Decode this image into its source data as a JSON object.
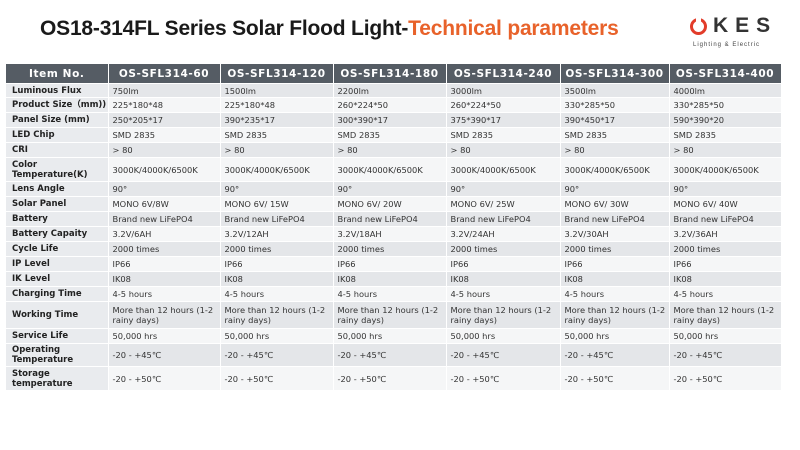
{
  "title": {
    "part1": "OS18-314FL Series Solar Flood Light-",
    "part2": "Technical parameters"
  },
  "logo": {
    "name": "KES",
    "tagline": "Lighting & Electric",
    "accent": "#e23c2a"
  },
  "colors": {
    "header_bg": "#555c64",
    "title_accent": "#e8622a"
  },
  "table": {
    "columns": [
      "Item No.",
      "OS-SFL314-60",
      "OS-SFL314-120",
      "OS-SFL314-180",
      "OS-SFL314-240",
      "OS-SFL314-300",
      "OS-SFL314-400"
    ],
    "rows": [
      {
        "label": "Luminous Flux",
        "cells": [
          "750lm",
          "1500lm",
          "2200lm",
          "3000lm",
          "3500lm",
          "4000lm"
        ]
      },
      {
        "label": "Product Size（mm))",
        "cells": [
          "225*180*48",
          "225*180*48",
          "260*224*50",
          "260*224*50",
          "330*285*50",
          "330*285*50"
        ]
      },
      {
        "label": "Panel Size (mm)",
        "cells": [
          "250*205*17",
          "390*235*17",
          "300*390*17",
          "375*390*17",
          "390*450*17",
          "590*390*20"
        ]
      },
      {
        "label": "LED Chip",
        "cells": [
          "SMD 2835",
          "SMD 2835",
          "SMD 2835",
          "SMD 2835",
          "SMD 2835",
          "SMD 2835"
        ]
      },
      {
        "label": "CRI",
        "cells": [
          "> 80",
          "> 80",
          "> 80",
          "> 80",
          "> 80",
          "> 80"
        ]
      },
      {
        "label": "Color Temperature(K)",
        "cells": [
          "3000K/4000K/6500K",
          "3000K/4000K/6500K",
          "3000K/4000K/6500K",
          "3000K/4000K/6500K",
          "3000K/4000K/6500K",
          "3000K/4000K/6500K"
        ]
      },
      {
        "label": "Lens Angle",
        "cells": [
          "90°",
          "90°",
          "90°",
          "90°",
          "90°",
          "90°"
        ]
      },
      {
        "label": "Solar Panel",
        "cells": [
          "MONO 6V/8W",
          "MONO 6V/ 15W",
          "MONO 6V/ 20W",
          "MONO 6V/ 25W",
          "MONO 6V/ 30W",
          "MONO 6V/ 40W"
        ]
      },
      {
        "label": "Battery",
        "cells": [
          "Brand new LiFePO4",
          "Brand new LiFePO4",
          "Brand new LiFePO4",
          "Brand new LiFePO4",
          "Brand new LiFePO4",
          "Brand new LiFePO4"
        ]
      },
      {
        "label": "Battery Capaity",
        "cells": [
          "3.2V/6AH",
          "3.2V/12AH",
          "3.2V/18AH",
          "3.2V/24AH",
          "3.2V/30AH",
          "3.2V/36AH"
        ]
      },
      {
        "label": "Cycle Life",
        "cells": [
          "2000 times",
          "2000 times",
          "2000 times",
          "2000 times",
          "2000 times",
          "2000 times"
        ]
      },
      {
        "label": "IP Level",
        "cells": [
          "IP66",
          "IP66",
          "IP66",
          "IP66",
          "IP66",
          "IP66"
        ]
      },
      {
        "label": "IK Level",
        "cells": [
          "IK08",
          "IK08",
          "IK08",
          "IK08",
          "IK08",
          "IK08"
        ]
      },
      {
        "label": "Charging Time",
        "cells": [
          "4-5 hours",
          "4-5 hours",
          "4-5 hours",
          "4-5 hours",
          "4-5 hours",
          "4-5 hours"
        ]
      },
      {
        "label": "Working Time",
        "cells": [
          "More than 12 hours (1-2 rainy days)",
          "More than 12 hours (1-2 rainy days)",
          "More than 12 hours (1-2 rainy days)",
          "More than 12 hours (1-2 rainy days)",
          "More than 12 hours (1-2 rainy days)",
          "More than 12 hours (1-2 rainy days)"
        ]
      },
      {
        "label": "Service Life",
        "cells": [
          "50,000 hrs",
          "50,000 hrs",
          "50,000 hrs",
          "50,000 hrs",
          "50,000 hrs",
          "50,000 hrs"
        ]
      },
      {
        "label": "Operating Temperature",
        "cells": [
          "-20 - +45℃",
          "-20 - +45℃",
          "-20 - +45℃",
          "-20 - +45℃",
          "-20 - +45℃",
          "-20 - +45℃"
        ]
      },
      {
        "label": "Storage temperature",
        "cells": [
          "-20 - +50℃",
          "-20 - +50℃",
          "-20 - +50℃",
          "-20 - +50℃",
          "-20 - +50℃",
          "-20 - +50℃"
        ]
      }
    ]
  }
}
